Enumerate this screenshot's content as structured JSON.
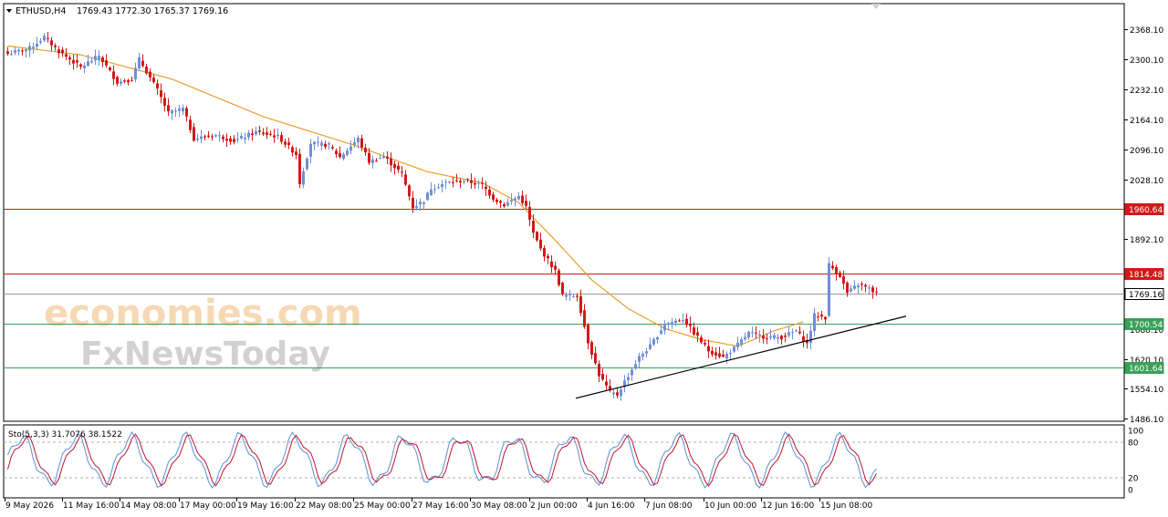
{
  "header": {
    "symbol": "ETHUSD,H4",
    "ohlc": "1769.43 1772.30 1765.37 1769.16"
  },
  "stoch": {
    "label": "Sto(5,3,3) 31.7076 38.1522",
    "levels": [
      "100",
      "80",
      "20",
      "0"
    ]
  },
  "watermark": {
    "line1": "economies.com",
    "line2": "FxNewsToday"
  },
  "colors": {
    "bull": "#6f8fd6",
    "bear": "#d11a1a",
    "ma": "#e8a030",
    "resistance": "#d11a1a",
    "support": "#3aa05a",
    "trend": "#000000",
    "current": "#9a9a9a",
    "stoch_main": "#5b8fd6",
    "stoch_signal": "#c0152f"
  },
  "chart_data": {
    "type": "candlestick",
    "symbol": "ETHUSD",
    "timeframe": "H4",
    "y_ticks": [
      2368.1,
      2300.1,
      2232.1,
      2164.1,
      2096.1,
      2028.1,
      1892.1,
      1688.1,
      1620.1,
      1554.1,
      1486.1
    ],
    "y_tick_labels": [
      "2368.10",
      "2300.10",
      "2232.10",
      "2164.10",
      "2096.10",
      "2028.10",
      "1892.10",
      "1688.10",
      "1620.10",
      "1554.10",
      "1486.10"
    ],
    "ylim": [
      1470,
      2400
    ],
    "x_tick_labels": [
      "9 May 2026",
      "11 May 16:00",
      "14 May 08:00",
      "17 May 00:00",
      "19 May 16:00",
      "22 May 08:00",
      "25 May 00:00",
      "27 May 16:00",
      "30 May 08:00",
      "2 Jun 00:00",
      "4 Jun 16:00",
      "7 Jun 08:00",
      "10 Jun 00:00",
      "12 Jun 16:00",
      "15 Jun 08:00"
    ],
    "horizontal_levels": [
      {
        "label": "1960.64",
        "value": 1960.64,
        "kind": "resistance"
      },
      {
        "label": "1814.48",
        "value": 1814.48,
        "kind": "resistance"
      },
      {
        "label": "1769.16",
        "value": 1769.16,
        "kind": "current"
      },
      {
        "label": "1700.54",
        "value": 1700.54,
        "kind": "support"
      },
      {
        "label": "1601.64",
        "value": 1601.64,
        "kind": "support"
      }
    ],
    "trendline": {
      "start_index": 156,
      "start_price": 1532,
      "end_index": 233,
      "end_price": 1718
    },
    "ma_close_anchors": [
      {
        "i": 0,
        "v": 2330
      },
      {
        "i": 20,
        "v": 2310
      },
      {
        "i": 45,
        "v": 2255
      },
      {
        "i": 70,
        "v": 2170
      },
      {
        "i": 95,
        "v": 2105
      },
      {
        "i": 115,
        "v": 2045
      },
      {
        "i": 130,
        "v": 2020
      },
      {
        "i": 140,
        "v": 1975
      },
      {
        "i": 150,
        "v": 1890
      },
      {
        "i": 160,
        "v": 1800
      },
      {
        "i": 170,
        "v": 1735
      },
      {
        "i": 180,
        "v": 1690
      },
      {
        "i": 190,
        "v": 1665
      },
      {
        "i": 200,
        "v": 1650
      },
      {
        "i": 210,
        "v": 1685
      },
      {
        "i": 218,
        "v": 1705
      }
    ],
    "close_anchors": [
      {
        "i": 0,
        "v": 2312
      },
      {
        "i": 6,
        "v": 2325
      },
      {
        "i": 10,
        "v": 2350
      },
      {
        "i": 14,
        "v": 2318
      },
      {
        "i": 20,
        "v": 2282
      },
      {
        "i": 25,
        "v": 2308
      },
      {
        "i": 30,
        "v": 2248
      },
      {
        "i": 34,
        "v": 2255
      },
      {
        "i": 36,
        "v": 2300
      },
      {
        "i": 41,
        "v": 2230
      },
      {
        "i": 44,
        "v": 2178
      },
      {
        "i": 48,
        "v": 2188
      },
      {
        "i": 51,
        "v": 2120
      },
      {
        "i": 57,
        "v": 2128
      },
      {
        "i": 62,
        "v": 2115
      },
      {
        "i": 68,
        "v": 2135
      },
      {
        "i": 74,
        "v": 2125
      },
      {
        "i": 79,
        "v": 2085
      },
      {
        "i": 80,
        "v": 2020
      },
      {
        "i": 83,
        "v": 2110
      },
      {
        "i": 88,
        "v": 2105
      },
      {
        "i": 91,
        "v": 2078
      },
      {
        "i": 96,
        "v": 2120
      },
      {
        "i": 99,
        "v": 2068
      },
      {
        "i": 103,
        "v": 2080
      },
      {
        "i": 108,
        "v": 2040
      },
      {
        "i": 111,
        "v": 1965
      },
      {
        "i": 114,
        "v": 1980
      },
      {
        "i": 116,
        "v": 2008
      },
      {
        "i": 120,
        "v": 2020
      },
      {
        "i": 125,
        "v": 2025
      },
      {
        "i": 130,
        "v": 2015
      },
      {
        "i": 133,
        "v": 1985
      },
      {
        "i": 136,
        "v": 1970
      },
      {
        "i": 140,
        "v": 1990
      },
      {
        "i": 142,
        "v": 1965
      },
      {
        "i": 144,
        "v": 1905
      },
      {
        "i": 146,
        "v": 1870
      },
      {
        "i": 150,
        "v": 1820
      },
      {
        "i": 152,
        "v": 1765
      },
      {
        "i": 156,
        "v": 1765
      },
      {
        "i": 159,
        "v": 1660
      },
      {
        "i": 162,
        "v": 1585
      },
      {
        "i": 165,
        "v": 1545
      },
      {
        "i": 167,
        "v": 1540
      },
      {
        "i": 169,
        "v": 1570
      },
      {
        "i": 173,
        "v": 1625
      },
      {
        "i": 176,
        "v": 1650
      },
      {
        "i": 180,
        "v": 1700
      },
      {
        "i": 185,
        "v": 1712
      },
      {
        "i": 188,
        "v": 1680
      },
      {
        "i": 192,
        "v": 1640
      },
      {
        "i": 196,
        "v": 1625
      },
      {
        "i": 199,
        "v": 1645
      },
      {
        "i": 203,
        "v": 1680
      },
      {
        "i": 207,
        "v": 1672
      },
      {
        "i": 212,
        "v": 1670
      },
      {
        "i": 216,
        "v": 1685
      },
      {
        "i": 219,
        "v": 1655
      },
      {
        "i": 221,
        "v": 1720
      },
      {
        "i": 224,
        "v": 1715
      },
      {
        "i": 225,
        "v": 1835
      },
      {
        "i": 228,
        "v": 1810
      },
      {
        "i": 230,
        "v": 1770
      },
      {
        "i": 233,
        "v": 1790
      },
      {
        "i": 236,
        "v": 1780
      },
      {
        "i": 238,
        "v": 1769
      }
    ],
    "stoch_range": [
      0,
      100
    ]
  }
}
